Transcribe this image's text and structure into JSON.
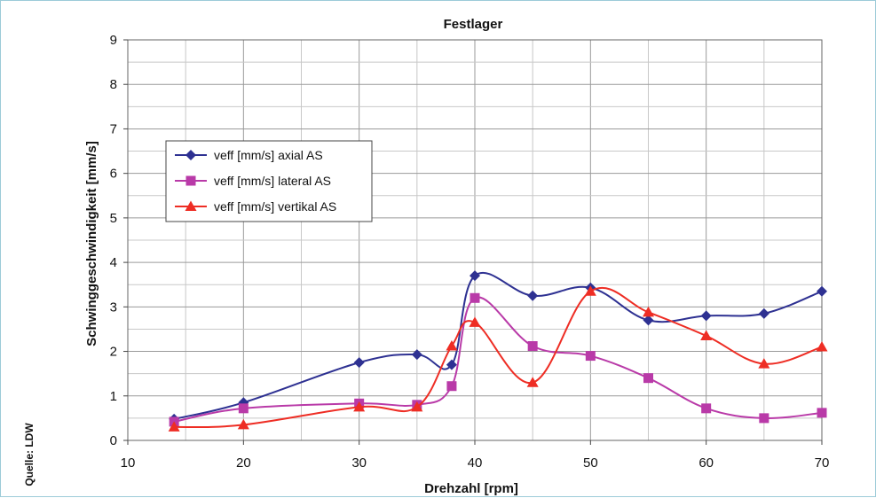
{
  "source_label": "Quelle: LDW",
  "chart_data": {
    "type": "line",
    "title": "Festlager",
    "xlabel": "Drehzahl [rpm]",
    "ylabel": "Schwinggeschwindigkeit [mm/s]",
    "xlim": [
      10,
      70
    ],
    "ylim": [
      0,
      9
    ],
    "xticks": [
      10,
      20,
      30,
      40,
      50,
      60,
      70
    ],
    "yticks": [
      0,
      1,
      2,
      3,
      4,
      5,
      6,
      7,
      8,
      9
    ],
    "grid": true,
    "legend_position": "upper-left",
    "x": [
      14,
      20,
      30,
      35,
      38,
      40,
      45,
      50,
      55,
      60,
      65,
      70
    ],
    "series": [
      {
        "name": "veff [mm/s] axial AS",
        "color": "#2e3192",
        "marker": "diamond",
        "values": [
          0.48,
          0.85,
          1.75,
          1.93,
          1.7,
          3.7,
          3.25,
          3.43,
          2.7,
          2.8,
          2.85,
          3.35
        ]
      },
      {
        "name": "veff [mm/s] lateral AS",
        "color": "#b93aa8",
        "marker": "square",
        "values": [
          0.42,
          0.72,
          0.83,
          0.8,
          1.22,
          3.2,
          2.12,
          1.9,
          1.4,
          0.72,
          0.5,
          0.62
        ]
      },
      {
        "name": "veff [mm/s] vertikal AS",
        "color": "#ee2d24",
        "marker": "triangle",
        "values": [
          0.3,
          0.35,
          0.75,
          0.75,
          2.12,
          2.65,
          1.3,
          3.35,
          2.88,
          2.35,
          1.72,
          2.1
        ]
      }
    ]
  }
}
